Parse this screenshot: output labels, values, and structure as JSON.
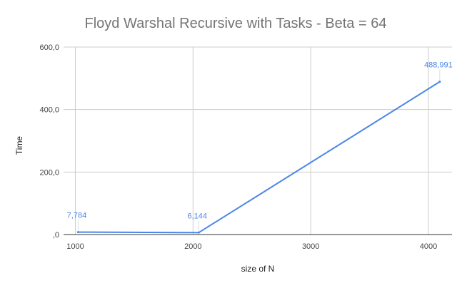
{
  "chart_data": {
    "type": "line",
    "title": "Floyd Warshal Recursive with Tasks - Beta = 64",
    "xlabel": "size of N",
    "ylabel": "Time",
    "xlim": [
      900,
      4200
    ],
    "ylim": [
      0,
      600
    ],
    "x_ticks": [
      1000,
      2000,
      3000,
      4000
    ],
    "x_tick_labels": [
      "1000",
      "2000",
      "3000",
      "4000"
    ],
    "y_ticks": [
      0,
      200,
      400,
      600
    ],
    "y_tick_labels": [
      ",0",
      "200,0",
      "400,0",
      "600,0"
    ],
    "grid": true,
    "series": [
      {
        "color": "#4a86e8",
        "x": [
          1024,
          2048,
          4096
        ],
        "values": [
          7.784,
          6.144,
          488.991
        ],
        "data_labels": [
          "7,784",
          "6,144",
          "488,991"
        ]
      }
    ]
  }
}
